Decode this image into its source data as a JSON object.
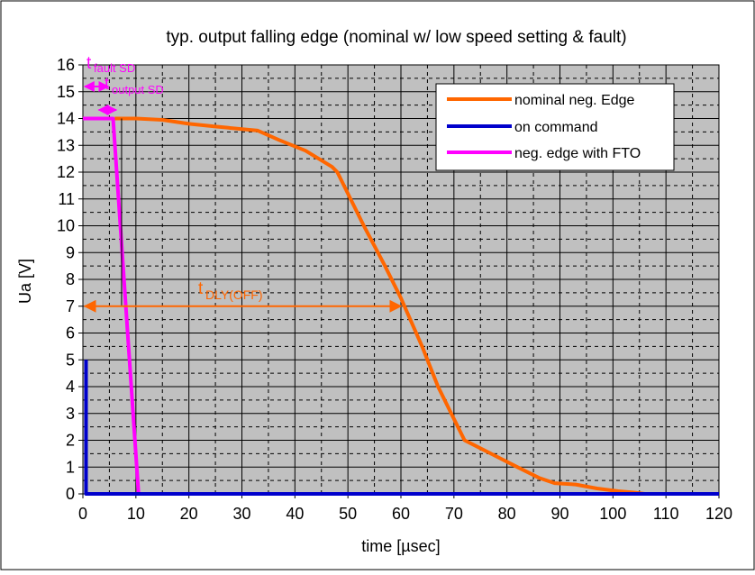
{
  "chart_data": {
    "type": "line",
    "title": "typ. output falling edge (nominal w/ low speed setting & fault)",
    "xlabel": "time [µsec]",
    "ylabel": "Ua [V]",
    "xlim": [
      0,
      120
    ],
    "ylim": [
      0,
      16
    ],
    "x_ticks": [
      "0",
      "10",
      "20",
      "30",
      "40",
      "50",
      "60",
      "70",
      "80",
      "90",
      "100",
      "110",
      "120"
    ],
    "y_ticks": [
      "0",
      "1",
      "2",
      "3",
      "4",
      "5",
      "6",
      "7",
      "8",
      "9",
      "10",
      "11",
      "12",
      "13",
      "14",
      "15",
      "16"
    ],
    "grid": true,
    "legend_position": "top-right",
    "colors": {
      "plot_background": "#c0c0c0",
      "nominal": "#ff6600",
      "command": "#0000cc",
      "fto": "#ff00ff"
    },
    "series": [
      {
        "name": "nominal neg. Edge",
        "color": "#ff6600",
        "points": [
          [
            6,
            14
          ],
          [
            10,
            14
          ],
          [
            15,
            13.95
          ],
          [
            20,
            13.8
          ],
          [
            25,
            13.7
          ],
          [
            33,
            13.55
          ],
          [
            37,
            13.2
          ],
          [
            42,
            12.8
          ],
          [
            47,
            12.2
          ],
          [
            48,
            12
          ],
          [
            53,
            10
          ],
          [
            57,
            8.5
          ],
          [
            60,
            7.3
          ],
          [
            64,
            5.5
          ],
          [
            67,
            4
          ],
          [
            70,
            2.8
          ],
          [
            72,
            2
          ],
          [
            74,
            1.8
          ],
          [
            78,
            1.4
          ],
          [
            82,
            1.0
          ],
          [
            86,
            0.6
          ],
          [
            89,
            0.4
          ],
          [
            93,
            0.35
          ],
          [
            97,
            0.2
          ],
          [
            101,
            0.1
          ],
          [
            104,
            0.05
          ],
          [
            106,
            0.0
          ]
        ]
      },
      {
        "name": "on command",
        "color": "#0000cc",
        "points": [
          [
            0.6,
            5
          ],
          [
            0.6,
            0
          ],
          [
            120,
            0
          ]
        ]
      },
      {
        "name": "neg. edge with FTO",
        "color": "#ff00ff",
        "points": [
          [
            0,
            14
          ],
          [
            5.7,
            14
          ],
          [
            10.5,
            0
          ],
          [
            120,
            0
          ]
        ]
      }
    ],
    "annotations": [
      {
        "text": "t",
        "sub": "fault SD",
        "color": "#ff00ff"
      },
      {
        "text": "t",
        "sub": "output SD",
        "color": "#ff00ff"
      },
      {
        "text": "t",
        "sub": "DLY(OFF)",
        "color": "#ff6600"
      }
    ]
  }
}
